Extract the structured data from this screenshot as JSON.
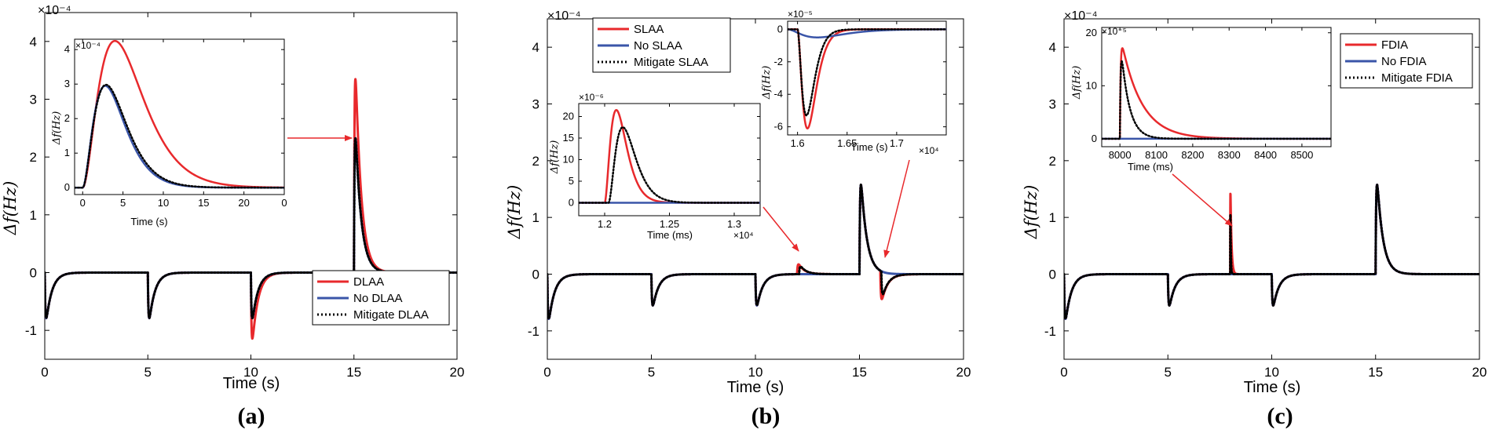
{
  "chart_data": [
    {
      "type": "line",
      "panel_label": "(a)",
      "xlabel": "Time (s)",
      "ylabel": "Δf(Hz)",
      "y_exponent": "×10⁻⁴",
      "xlim": [
        0,
        20
      ],
      "ylim": [
        -1.5,
        4.5
      ],
      "xticks": [
        "0",
        "5",
        "10",
        "15",
        "20"
      ],
      "yticks": [
        "-1",
        "0",
        "1",
        "2",
        "3",
        "4"
      ],
      "legend": {
        "position": "bottom-right",
        "entries": [
          "DLAA",
          "No DLAA",
          "Mitigate DLAA"
        ]
      },
      "series": [
        {
          "name": "DLAA",
          "color": "#e8292c",
          "style": "solid",
          "events": [
            {
              "t": 0,
              "amp": -1.0
            },
            {
              "t": 5,
              "amp": -1.0
            },
            {
              "t": 10,
              "amp": -1.45
            },
            {
              "t": 15,
              "amp": 4.25
            }
          ]
        },
        {
          "name": "No DLAA",
          "color": "#3a55a8",
          "style": "solid",
          "events": [
            {
              "t": 0,
              "amp": -1.0
            },
            {
              "t": 5,
              "amp": -1.0
            },
            {
              "t": 10,
              "amp": -1.0
            },
            {
              "t": 15,
              "amp": 2.95
            }
          ]
        },
        {
          "name": "Mitigate DLAA",
          "color": "#000000",
          "style": "dotted",
          "events": [
            {
              "t": 0,
              "amp": -1.0
            },
            {
              "t": 5,
              "amp": -1.0
            },
            {
              "t": 10,
              "amp": -1.0
            },
            {
              "t": 15,
              "amp": 2.95
            }
          ]
        }
      ],
      "inset": {
        "xlabel": "Time (s)",
        "ylabel": "Δf(Hz)",
        "y_exponent": "×10⁻⁴",
        "xlim": [
          -1,
          25
        ],
        "ylim": [
          -0.2,
          4.3
        ],
        "xticks": [
          "0",
          "5",
          "10",
          "15",
          "20",
          "0"
        ],
        "yticks": [
          "0",
          "1",
          "2",
          "3",
          "4"
        ],
        "series": [
          {
            "name": "DLAA",
            "color": "#e8292c",
            "style": "solid",
            "amp": 4.25,
            "tpeak": 4.0
          },
          {
            "name": "No DLAA",
            "color": "#3a55a8",
            "style": "solid",
            "amp": 2.95,
            "tpeak": 2.8
          },
          {
            "name": "Mitigate DLAA",
            "color": "#000000",
            "style": "dotted",
            "amp": 2.98,
            "tpeak": 2.9
          }
        ]
      }
    },
    {
      "type": "line",
      "panel_label": "(b)",
      "xlabel": "Time (s)",
      "ylabel": "Δf(Hz)",
      "y_exponent": "×10⁻⁴",
      "xlim": [
        0,
        20
      ],
      "ylim": [
        -1.5,
        4.5
      ],
      "xticks": [
        "0",
        "5",
        "10",
        "15",
        "20"
      ],
      "yticks": [
        "-1",
        "0",
        "1",
        "2",
        "3",
        "4"
      ],
      "legend": {
        "position": "top-left",
        "entries": [
          "SLAA",
          "No SLAA",
          "Mitigate SLAA"
        ]
      },
      "series": [
        {
          "name": "SLAA",
          "color": "#e8292c",
          "style": "solid",
          "events": [
            {
              "t": 0,
              "amp": -1.0
            },
            {
              "t": 5,
              "amp": -0.7
            },
            {
              "t": 10,
              "amp": -0.7
            },
            {
              "t": 12,
              "amp": 0.22
            },
            {
              "t": 15,
              "amp": 2.0
            },
            {
              "t": 16,
              "amp": -0.62
            }
          ]
        },
        {
          "name": "No SLAA",
          "color": "#3a55a8",
          "style": "solid",
          "events": [
            {
              "t": 0,
              "amp": -1.0
            },
            {
              "t": 5,
              "amp": -0.7
            },
            {
              "t": 10,
              "amp": -0.7
            },
            {
              "t": 15,
              "amp": 2.0
            }
          ]
        },
        {
          "name": "Mitigate SLAA",
          "color": "#000000",
          "style": "dotted",
          "events": [
            {
              "t": 0,
              "amp": -1.0
            },
            {
              "t": 5,
              "amp": -0.7
            },
            {
              "t": 10,
              "amp": -0.7
            },
            {
              "t": 12.1,
              "amp": 0.17
            },
            {
              "t": 15,
              "amp": 2.0
            },
            {
              "t": 16.05,
              "amp": -0.5
            }
          ]
        }
      ],
      "inset_left": {
        "xlabel": "Time (ms)",
        "ylabel": "Δf(Hz)",
        "y_exponent": "×10⁻⁶",
        "x_exponent": "×10⁴",
        "xlim": [
          1.18,
          1.32
        ],
        "ylim": [
          -3,
          23
        ],
        "xticks": [
          "1.2",
          "1.25",
          "1.3"
        ],
        "yticks": [
          "0",
          "5",
          "10",
          "15",
          "20"
        ],
        "series": [
          {
            "name": "SLAA",
            "color": "#e8292c",
            "style": "solid",
            "t0": 1.2,
            "amp": 21.5,
            "tpeak": 0.009
          },
          {
            "name": "No SLAA",
            "color": "#3a55a8",
            "style": "solid",
            "t0": 1.2,
            "amp": 0,
            "tpeak": 0.01
          },
          {
            "name": "Mitigate SLAA",
            "color": "#000000",
            "style": "dotted",
            "t0": 1.203,
            "amp": 17.5,
            "tpeak": 0.011
          }
        ]
      },
      "inset_right": {
        "xlabel": "Time (s)",
        "ylabel": "Δf(Hz)",
        "y_exponent": "×10⁻⁵",
        "x_exponent": "×10⁴",
        "xlim": [
          1.59,
          1.75
        ],
        "ylim": [
          -6.5,
          0.5
        ],
        "xticks": [
          "1.6",
          "1.65",
          "1.7"
        ],
        "yticks": [
          "0",
          "-2",
          "-4",
          "-6"
        ],
        "series": [
          {
            "name": "SLAA",
            "color": "#e8292c",
            "style": "solid",
            "t0": 1.6,
            "amp": -6.1,
            "tpeak": 0.01
          },
          {
            "name": "No SLAA",
            "color": "#3a55a8",
            "style": "solid",
            "t0": 1.59,
            "amp": -0.5,
            "tpeak": 0.03
          },
          {
            "name": "Mitigate SLAA",
            "color": "#000000",
            "style": "dotted",
            "t0": 1.6,
            "amp": -5.3,
            "tpeak": 0.009
          }
        ]
      }
    },
    {
      "type": "line",
      "panel_label": "(c)",
      "xlabel": "Time (s)",
      "ylabel": "Δf(Hz)",
      "y_exponent": "×10⁻⁴",
      "xlim": [
        0,
        20
      ],
      "ylim": [
        -1.5,
        4.5
      ],
      "xticks": [
        "0",
        "5",
        "10",
        "15",
        "20"
      ],
      "yticks": [
        "-1",
        "0",
        "1",
        "2",
        "3",
        "4"
      ],
      "legend": {
        "position": "top-right",
        "entries": [
          "FDIA",
          "No FDIA",
          "Mitigate FDIA"
        ]
      },
      "series": [
        {
          "name": "FDIA",
          "color": "#e8292c",
          "style": "solid",
          "events": [
            {
              "t": 0,
              "amp": -1.0
            },
            {
              "t": 5,
              "amp": -0.7
            },
            {
              "t": 8,
              "amp": 2.0
            },
            {
              "t": 10,
              "amp": -0.7
            },
            {
              "t": 15,
              "amp": 2.0
            }
          ]
        },
        {
          "name": "No FDIA",
          "color": "#3a55a8",
          "style": "solid",
          "events": [
            {
              "t": 0,
              "amp": -1.0
            },
            {
              "t": 5,
              "amp": -0.7
            },
            {
              "t": 10,
              "amp": -0.7
            },
            {
              "t": 15,
              "amp": 2.0
            }
          ]
        },
        {
          "name": "Mitigate FDIA",
          "color": "#000000",
          "style": "dotted",
          "events": [
            {
              "t": 0,
              "amp": -1.0
            },
            {
              "t": 5,
              "amp": -0.7
            },
            {
              "t": 8,
              "amp": 2.0
            },
            {
              "t": 10,
              "amp": -0.7
            },
            {
              "t": 15,
              "amp": 2.0
            }
          ]
        }
      ],
      "inset": {
        "xlabel": "Time (ms)",
        "ylabel": "Δf(Hz)",
        "y_exponent": "×10⁻⁵",
        "xlim": [
          7950,
          8580
        ],
        "ylim": [
          -1.5,
          21
        ],
        "xticks": [
          "8000",
          "8100",
          "8200",
          "8300",
          "8400",
          "8500"
        ],
        "yticks": [
          "0",
          "10",
          "20"
        ],
        "series": [
          {
            "name": "FDIA",
            "color": "#e8292c",
            "style": "solid",
            "t0": 8000,
            "amp": 20,
            "decay": 55
          },
          {
            "name": "No FDIA",
            "color": "#3a55a8",
            "style": "solid",
            "t0": 8000,
            "amp": 0,
            "decay": 55
          },
          {
            "name": "Mitigate FDIA",
            "color": "#000000",
            "style": "dotted",
            "t0": 8000,
            "amp": 20,
            "decay": 22
          }
        ]
      }
    }
  ]
}
